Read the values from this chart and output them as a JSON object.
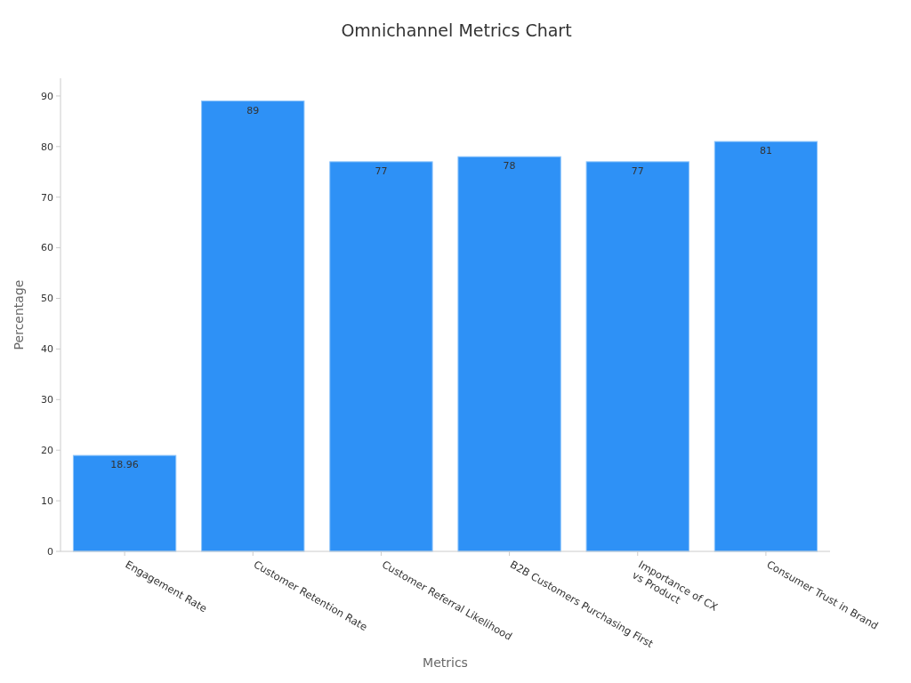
{
  "chart_data": {
    "type": "bar",
    "title": "Omnichannel Metrics Chart",
    "xlabel": "Metrics",
    "ylabel": "Percentage",
    "categories": [
      "Engagement Rate",
      "Customer Retention Rate",
      "Customer Referral Likelihood",
      "B2B Customers Purchasing First",
      "Importance of CX\nvs Product",
      "Consumer Trust in Brand"
    ],
    "values": [
      18.96,
      89,
      77,
      78,
      77,
      81
    ],
    "color": "#2e91f6",
    "ylim": [
      0,
      93.5
    ],
    "yticks": [
      0,
      10,
      20,
      30,
      40,
      50,
      60,
      70,
      80,
      90
    ],
    "grid": false,
    "data_labels": true
  }
}
